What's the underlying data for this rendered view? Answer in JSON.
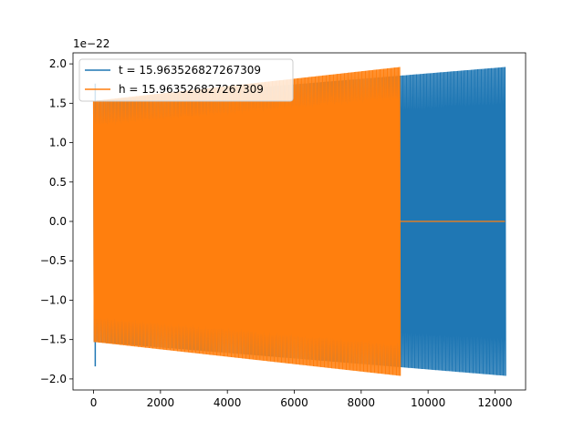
{
  "chart_data": {
    "type": "line",
    "title": "",
    "xlabel": "",
    "ylabel": "",
    "offset_label": "1e−22",
    "xlim": [
      -615,
      12915
    ],
    "ylim": [
      -2.14,
      2.14
    ],
    "xticks": [
      0,
      2000,
      4000,
      6000,
      8000,
      10000,
      12000
    ],
    "xtick_labels": [
      "0",
      "2000",
      "4000",
      "6000",
      "8000",
      "10000",
      "12000"
    ],
    "yticks": [
      -2.0,
      -1.5,
      -1.0,
      -0.5,
      0.0,
      0.5,
      1.0,
      1.5,
      2.0
    ],
    "ytick_labels": [
      "−2.0",
      "−1.5",
      "−1.0",
      "−0.5",
      "0.0",
      "0.5",
      "1.0",
      "1.5",
      "2.0"
    ],
    "grid": false,
    "legend_position": "upper-left",
    "series": [
      {
        "name": "t = 15.963526827267309",
        "color": "#1f77b4",
        "x_range": [
          0,
          12300
        ],
        "initial_spike": {
          "x": 50,
          "y_min": -1.84,
          "y_max": 1.75
        },
        "envelope_x": [
          0,
          12300
        ],
        "envelope_y": [
          1.53,
          1.96
        ],
        "oscillations": 330
      },
      {
        "name": "h = 15.963526827267309",
        "color": "#ff7f0e",
        "x_range": [
          0,
          9150
        ],
        "envelope_x": [
          0,
          9150
        ],
        "envelope_y": [
          1.53,
          1.96
        ],
        "oscillations": 250,
        "after_end_value": 0.0,
        "after_end_x_range": [
          9150,
          12300
        ]
      }
    ]
  }
}
